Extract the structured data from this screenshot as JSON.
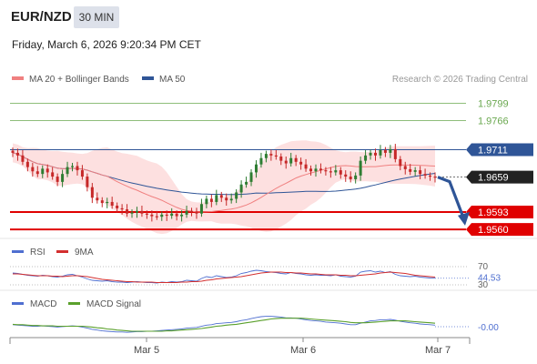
{
  "header": {
    "pair": "EUR/NZD",
    "timeframe": "30 MIN",
    "datetime": "Friday, March 6, 2026 9:20:34 PM CET"
  },
  "legend": {
    "items": [
      {
        "label": "MA 20 + Bollinger Bands",
        "color": "#f08080"
      },
      {
        "label": "MA 50",
        "color": "#2f5597"
      }
    ],
    "credit": "Research © 2026 Trading Central"
  },
  "colors": {
    "up_candle": "#2e7d32",
    "down_candle": "#c62828",
    "bollinger_fill": "#fde0e0",
    "ma20": "#f08080",
    "ma50": "#2f5597",
    "target": "#6aa84f",
    "pivot": "#2f5597",
    "support": "#e00000",
    "arrow": "#2f5597",
    "rsi": "#4f6fd0",
    "rsi_ma": "#d32f2f",
    "macd": "#4f6fd0",
    "macd_signal": "#5aa02c"
  },
  "chart_data": [
    {
      "type": "candlestick",
      "y_range": [
        1.9543,
        1.9822
      ],
      "x_labels": [
        "Mar 5",
        "Mar 6",
        "Mar 7"
      ],
      "levels": [
        {
          "value": 1.9799,
          "label": "1.9799",
          "kind": "target"
        },
        {
          "value": 1.9766,
          "label": "1.9766",
          "kind": "target"
        },
        {
          "value": 1.9711,
          "label": "1.9711",
          "kind": "pivot"
        },
        {
          "value": 1.9659,
          "label": "1.9659",
          "kind": "last"
        },
        {
          "value": 1.9593,
          "label": "1.9593",
          "kind": "support"
        },
        {
          "value": 1.956,
          "label": "1.9560",
          "kind": "support"
        }
      ],
      "close_series": [
        1.9705,
        1.97,
        1.9688,
        1.9678,
        1.967,
        1.9665,
        1.9675,
        1.9668,
        1.966,
        1.965,
        1.9665,
        1.9678,
        1.968,
        1.9672,
        1.966,
        1.964,
        1.962,
        1.9615,
        1.961,
        1.9612,
        1.9605,
        1.96,
        1.9598,
        1.959,
        1.9592,
        1.9595,
        1.959,
        1.9588,
        1.9585,
        1.9584,
        1.9588,
        1.9586,
        1.959,
        1.9585,
        1.9588,
        1.9595,
        1.9593,
        1.959,
        1.9608,
        1.9618,
        1.9612,
        1.9625,
        1.962,
        1.9615,
        1.9618,
        1.963,
        1.9645,
        1.965,
        1.9668,
        1.9683,
        1.9695,
        1.9703,
        1.97,
        1.9698,
        1.969,
        1.9685,
        1.9695,
        1.9688,
        1.9683,
        1.9675,
        1.967,
        1.9675,
        1.9672,
        1.967,
        1.9668,
        1.9672,
        1.9664,
        1.966,
        1.9655,
        1.9662,
        1.969,
        1.97,
        1.9705,
        1.97,
        1.971,
        1.9705,
        1.9712,
        1.9693,
        1.968,
        1.9674,
        1.9669,
        1.9672,
        1.9665,
        1.9662,
        1.966,
        1.9659
      ],
      "forecast": {
        "from": 1.9659,
        "to": 1.9569
      }
    },
    {
      "type": "line",
      "name": "RSI",
      "legend": [
        {
          "label": "RSI"
        },
        {
          "label": "9MA"
        }
      ],
      "levels": [
        {
          "value": 70,
          "label": "70"
        },
        {
          "value": 44.53,
          "label": "44.53"
        },
        {
          "value": 30,
          "label": "30"
        }
      ],
      "rsi": [
        56,
        55,
        53,
        51,
        50,
        49,
        51,
        50,
        48,
        47,
        49,
        52,
        53,
        50,
        47,
        43,
        40,
        39,
        38,
        39,
        37,
        36,
        36,
        35,
        36,
        37,
        36,
        35,
        35,
        34,
        36,
        35,
        37,
        36,
        37,
        40,
        39,
        38,
        44,
        48,
        46,
        50,
        48,
        46,
        47,
        50,
        55,
        57,
        60,
        62,
        61,
        59,
        58,
        57,
        55,
        54,
        57,
        55,
        54,
        52,
        51,
        52,
        51,
        51,
        50,
        52,
        49,
        48,
        47,
        49,
        58,
        60,
        61,
        58,
        60,
        57,
        59,
        53,
        50,
        49,
        48,
        49,
        47,
        46,
        45,
        44.53
      ],
      "rsi_ma": [
        54,
        54,
        53,
        52,
        51,
        50,
        50,
        50,
        49,
        49,
        48,
        49,
        50,
        50,
        49,
        48,
        46,
        44,
        42,
        41,
        40,
        39,
        38,
        37,
        37,
        36,
        36,
        36,
        36,
        35,
        35,
        35,
        35,
        35,
        36,
        36,
        37,
        37,
        38,
        40,
        41,
        43,
        44,
        45,
        46,
        47,
        48,
        50,
        52,
        54,
        56,
        57,
        58,
        58,
        58,
        57,
        57,
        56,
        56,
        55,
        54,
        54,
        53,
        52,
        52,
        52,
        51,
        51,
        50,
        50,
        51,
        52,
        53,
        54,
        56,
        57,
        58,
        57,
        56,
        55,
        53,
        51,
        50,
        49,
        48,
        47
      ]
    },
    {
      "type": "line",
      "name": "MACD",
      "legend": [
        {
          "label": "MACD"
        },
        {
          "label": "MACD Signal"
        }
      ],
      "last_label": "-0.00",
      "macd": [
        -0.0002,
        -0.0003,
        -0.0004,
        -0.0005,
        -0.0006,
        -0.0006,
        -0.0005,
        -0.0006,
        -0.0007,
        -0.0008,
        -0.0007,
        -0.0006,
        -0.0005,
        -0.0006,
        -0.0008,
        -0.0011,
        -0.0014,
        -0.0016,
        -0.0018,
        -0.0019,
        -0.002,
        -0.0021,
        -0.0021,
        -0.0022,
        -0.0021,
        -0.002,
        -0.002,
        -0.0019,
        -0.0019,
        -0.0018,
        -0.0017,
        -0.0016,
        -0.0015,
        -0.0014,
        -0.0013,
        -0.0011,
        -0.001,
        -0.0009,
        -0.0006,
        -0.0003,
        -0.0002,
        0.0001,
        0.0002,
        0.0003,
        0.0004,
        0.0006,
        0.0009,
        0.0011,
        0.0014,
        0.0017,
        0.0019,
        0.002,
        0.002,
        0.0019,
        0.0018,
        0.0016,
        0.0016,
        0.0015,
        0.0013,
        0.0011,
        0.0009,
        0.0008,
        0.0007,
        0.0005,
        0.0004,
        0.0003,
        0.0002,
        0.0,
        -0.0002,
        -0.0002,
        0.0002,
        0.0005,
        0.0008,
        0.0009,
        0.0011,
        0.0011,
        0.0012,
        0.001,
        0.0007,
        0.0005,
        0.0003,
        0.0002,
        0.0,
        -0.0001,
        -0.0002,
        -0.0003
      ],
      "signal": [
        -0.0001,
        -0.0002,
        -0.0002,
        -0.0003,
        -0.0004,
        -0.0004,
        -0.0005,
        -0.0005,
        -0.0005,
        -0.0006,
        -0.0006,
        -0.0006,
        -0.0006,
        -0.0006,
        -0.0006,
        -0.0007,
        -0.0008,
        -0.001,
        -0.0011,
        -0.0013,
        -0.0014,
        -0.0016,
        -0.0017,
        -0.0018,
        -0.0019,
        -0.0019,
        -0.0019,
        -0.0019,
        -0.0019,
        -0.0019,
        -0.0019,
        -0.0018,
        -0.0018,
        -0.0017,
        -0.0016,
        -0.0015,
        -0.0014,
        -0.0013,
        -0.0012,
        -0.001,
        -0.0008,
        -0.0006,
        -0.0005,
        -0.0003,
        -0.0002,
        -0.0001,
        0.0001,
        0.0003,
        0.0005,
        0.0007,
        0.0009,
        0.0011,
        0.0013,
        0.0014,
        0.0015,
        0.0015,
        0.0015,
        0.0015,
        0.0015,
        0.0014,
        0.0013,
        0.0012,
        0.0011,
        0.001,
        0.0009,
        0.0008,
        0.0007,
        0.0006,
        0.0004,
        0.0003,
        0.0003,
        0.0003,
        0.0004,
        0.0005,
        0.0006,
        0.0007,
        0.0008,
        0.0008,
        0.0008,
        0.0008,
        0.0007,
        0.0006,
        0.0005,
        0.0004,
        0.0003,
        0.0002
      ]
    }
  ]
}
